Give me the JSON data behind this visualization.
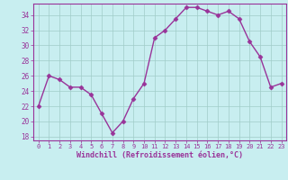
{
  "x": [
    0,
    1,
    2,
    3,
    4,
    5,
    6,
    7,
    8,
    9,
    10,
    11,
    12,
    13,
    14,
    15,
    16,
    17,
    18,
    19,
    20,
    21,
    22,
    23
  ],
  "y": [
    22,
    26,
    25.5,
    24.5,
    24.5,
    23.5,
    21,
    18.5,
    20,
    23,
    25,
    31,
    32,
    33.5,
    35,
    35,
    34.5,
    34,
    34.5,
    33.5,
    30.5,
    28.5,
    24.5,
    25
  ],
  "line_color": "#993399",
  "marker": "D",
  "marker_size": 2.5,
  "bg_color": "#c8eef0",
  "grid_color": "#a0ccc8",
  "xlabel": "Windchill (Refroidissement éolien,°C)",
  "xlabel_color": "#993399",
  "tick_color": "#993399",
  "ylim": [
    17.5,
    35.5
  ],
  "xlim": [
    -0.5,
    23.5
  ],
  "yticks": [
    18,
    20,
    22,
    24,
    26,
    28,
    30,
    32,
    34
  ],
  "xticks": [
    0,
    1,
    2,
    3,
    4,
    5,
    6,
    7,
    8,
    9,
    10,
    11,
    12,
    13,
    14,
    15,
    16,
    17,
    18,
    19,
    20,
    21,
    22,
    23
  ],
  "line_width": 1.0,
  "spine_color": "#993399"
}
